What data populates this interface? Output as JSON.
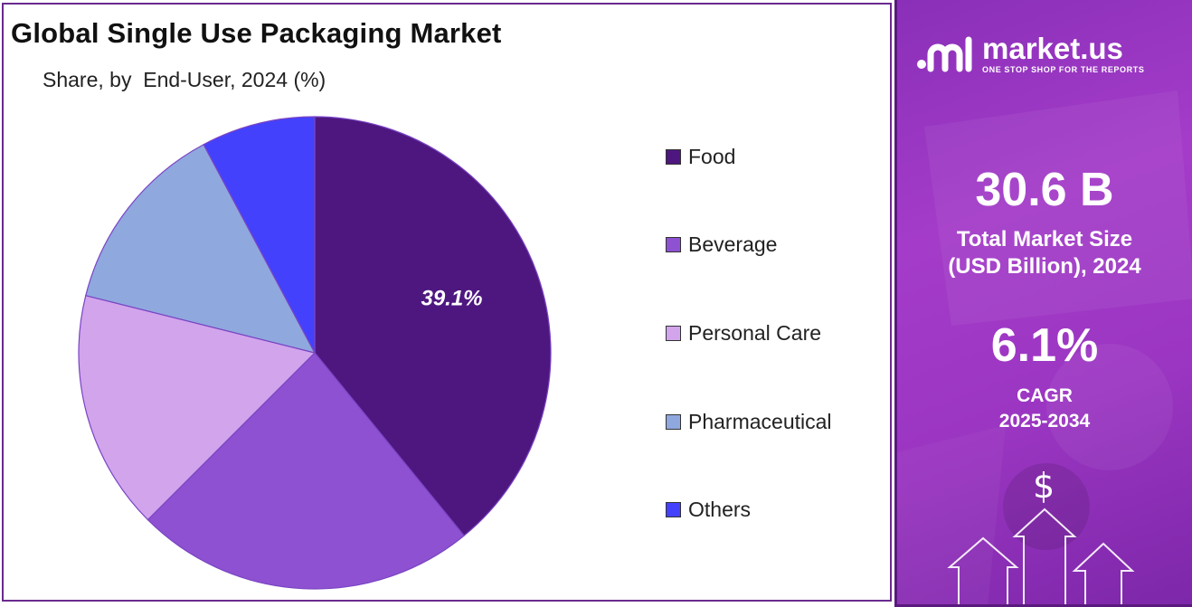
{
  "title": "Global Single Use Packaging Market",
  "subtitle": "Share, by  End-User, 2024 (%)",
  "chart_data": {
    "type": "pie",
    "categories": [
      "Food",
      "Beverage",
      "Personal Care",
      "Pharmaceutical",
      "Others"
    ],
    "values": [
      39.1,
      23.4,
      16.4,
      13.3,
      7.8
    ],
    "colors": [
      "#4e1780",
      "#8e51d1",
      "#d1a4ec",
      "#8fa8de",
      "#4341fc"
    ],
    "data_labels": [
      "39.1%",
      "",
      "",
      "",
      ""
    ],
    "legend_position": "right"
  },
  "info_panel": {
    "brand_name": "market.us",
    "brand_tagline": "ONE STOP SHOP FOR THE REPORTS",
    "market_size_value": "30.6 B",
    "market_size_label_line1": "Total Market Size",
    "market_size_label_line2": "(USD Billion), 2024",
    "cagr_value": "6.1%",
    "cagr_label_line1": "CAGR",
    "cagr_label_line2": "2025-2034",
    "currency_symbol": "$",
    "icons": [
      "market-us-logo-icon",
      "dollar-icon",
      "up-arrow-icon"
    ]
  }
}
